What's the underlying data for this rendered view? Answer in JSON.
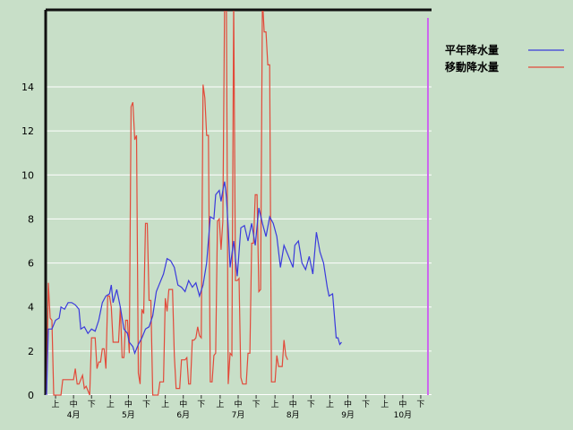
{
  "chart_data": {
    "type": "line",
    "ylim": [
      0,
      17.5
    ],
    "y_ticks": [
      "0",
      "2",
      "4",
      "6",
      "8",
      "10",
      "12",
      "14"
    ],
    "months": [
      "4月",
      "5月",
      "6月",
      "7月",
      "8月",
      "9月",
      "10月"
    ],
    "dekads": [
      "上",
      "中",
      "下"
    ],
    "grid": true,
    "legend_position": "top-right",
    "n_days": 214,
    "marker_day": 212,
    "series": [
      {
        "name": "平年降水量",
        "color": "#3a3adc",
        "points": [
          [
            0,
            0
          ],
          [
            1,
            3.0
          ],
          [
            3,
            3.0
          ],
          [
            5,
            3.4
          ],
          [
            7,
            3.5
          ],
          [
            8,
            4.0
          ],
          [
            10,
            3.9
          ],
          [
            12,
            4.2
          ],
          [
            14,
            4.2
          ],
          [
            16,
            4.1
          ],
          [
            18,
            3.9
          ],
          [
            19,
            3.0
          ],
          [
            21,
            3.1
          ],
          [
            23,
            2.8
          ],
          [
            25,
            3.0
          ],
          [
            27,
            2.9
          ],
          [
            29,
            3.4
          ],
          [
            31,
            4.2
          ],
          [
            33,
            4.5
          ],
          [
            35,
            4.6
          ],
          [
            36,
            5.0
          ],
          [
            37,
            4.2
          ],
          [
            39,
            4.8
          ],
          [
            41,
            4.0
          ],
          [
            43,
            3.0
          ],
          [
            45,
            2.8
          ],
          [
            46,
            2.4
          ],
          [
            48,
            2.2
          ],
          [
            49,
            1.9
          ],
          [
            51,
            2.3
          ],
          [
            53,
            2.6
          ],
          [
            55,
            3.0
          ],
          [
            57,
            3.1
          ],
          [
            59,
            3.6
          ],
          [
            61,
            4.7
          ],
          [
            63,
            5.1
          ],
          [
            65,
            5.5
          ],
          [
            67,
            6.2
          ],
          [
            69,
            6.1
          ],
          [
            71,
            5.8
          ],
          [
            73,
            5.0
          ],
          [
            75,
            4.9
          ],
          [
            77,
            4.7
          ],
          [
            79,
            5.2
          ],
          [
            81,
            4.9
          ],
          [
            83,
            5.1
          ],
          [
            85,
            4.5
          ],
          [
            87,
            5.0
          ],
          [
            89,
            6.0
          ],
          [
            91,
            8.1
          ],
          [
            93,
            8.0
          ],
          [
            94,
            9.1
          ],
          [
            96,
            9.3
          ],
          [
            97,
            8.8
          ],
          [
            98,
            9.3
          ],
          [
            99,
            9.7
          ],
          [
            100,
            9.0
          ],
          [
            101,
            7.6
          ],
          [
            102,
            5.8
          ],
          [
            104,
            7.0
          ],
          [
            106,
            5.4
          ],
          [
            108,
            7.6
          ],
          [
            110,
            7.7
          ],
          [
            112,
            7.0
          ],
          [
            114,
            7.8
          ],
          [
            116,
            6.8
          ],
          [
            118,
            8.5
          ],
          [
            120,
            7.8
          ],
          [
            122,
            7.2
          ],
          [
            124,
            8.1
          ],
          [
            126,
            7.8
          ],
          [
            128,
            7.2
          ],
          [
            130,
            5.8
          ],
          [
            132,
            6.8
          ],
          [
            134,
            6.4
          ],
          [
            136,
            6.0
          ],
          [
            137,
            5.8
          ],
          [
            138,
            6.8
          ],
          [
            140,
            7.0
          ],
          [
            142,
            6.0
          ],
          [
            144,
            5.7
          ],
          [
            146,
            6.3
          ],
          [
            148,
            5.5
          ],
          [
            150,
            7.4
          ],
          [
            152,
            6.5
          ],
          [
            154,
            6.0
          ],
          [
            156,
            4.9
          ],
          [
            157,
            4.5
          ],
          [
            159,
            4.6
          ],
          [
            161,
            2.6
          ],
          [
            162,
            2.6
          ],
          [
            163,
            2.3
          ],
          [
            164,
            2.4
          ]
        ]
      },
      {
        "name": "移動降水量",
        "color": "#e24a3a",
        "points": [
          [
            0,
            0.0
          ],
          [
            1,
            5.1
          ],
          [
            2,
            3.5
          ],
          [
            3,
            3.4
          ],
          [
            4,
            0.0
          ],
          [
            5,
            0.0
          ],
          [
            6,
            0.0
          ],
          [
            7,
            0.0
          ],
          [
            8,
            0.0
          ],
          [
            9,
            0.7
          ],
          [
            10,
            0.7
          ],
          [
            11,
            0.7
          ],
          [
            13,
            0.7
          ],
          [
            15,
            0.7
          ],
          [
            16,
            1.2
          ],
          [
            17,
            0.5
          ],
          [
            18,
            0.5
          ],
          [
            20,
            0.9
          ],
          [
            21,
            0.3
          ],
          [
            22,
            0.4
          ],
          [
            24,
            0.0
          ],
          [
            25,
            2.6
          ],
          [
            26,
            2.6
          ],
          [
            27,
            2.6
          ],
          [
            28,
            1.2
          ],
          [
            29,
            1.5
          ],
          [
            30,
            1.5
          ],
          [
            31,
            2.1
          ],
          [
            32,
            2.1
          ],
          [
            33,
            1.2
          ],
          [
            34,
            4.5
          ],
          [
            35,
            4.5
          ],
          [
            36,
            4.0
          ],
          [
            37,
            2.4
          ],
          [
            38,
            2.4
          ],
          [
            39,
            2.4
          ],
          [
            40,
            2.4
          ],
          [
            41,
            4.0
          ],
          [
            42,
            1.7
          ],
          [
            43,
            1.7
          ],
          [
            44,
            3.4
          ],
          [
            45,
            3.4
          ],
          [
            46,
            1.9
          ],
          [
            47,
            13.1
          ],
          [
            48,
            13.3
          ],
          [
            49,
            11.6
          ],
          [
            50,
            11.8
          ],
          [
            51,
            1.0
          ],
          [
            52,
            0.5
          ],
          [
            53,
            3.9
          ],
          [
            54,
            3.7
          ],
          [
            55,
            7.8
          ],
          [
            56,
            7.8
          ],
          [
            57,
            4.3
          ],
          [
            58,
            4.3
          ],
          [
            59,
            0.0
          ],
          [
            60,
            0.0
          ],
          [
            61,
            0.0
          ],
          [
            62,
            0.0
          ],
          [
            63,
            0.6
          ],
          [
            64,
            0.6
          ],
          [
            65,
            0.6
          ],
          [
            66,
            4.4
          ],
          [
            67,
            3.8
          ],
          [
            68,
            4.8
          ],
          [
            69,
            4.8
          ],
          [
            70,
            4.8
          ],
          [
            71,
            1.8
          ],
          [
            72,
            0.3
          ],
          [
            73,
            0.3
          ],
          [
            74,
            0.3
          ],
          [
            75,
            1.6
          ],
          [
            76,
            1.6
          ],
          [
            77,
            1.6
          ],
          [
            78,
            1.7
          ],
          [
            79,
            0.5
          ],
          [
            80,
            0.5
          ],
          [
            81,
            2.5
          ],
          [
            82,
            2.5
          ],
          [
            83,
            2.6
          ],
          [
            84,
            3.1
          ],
          [
            85,
            2.7
          ],
          [
            86,
            2.6
          ],
          [
            87,
            14.1
          ],
          [
            88,
            13.5
          ],
          [
            89,
            11.8
          ],
          [
            90,
            11.8
          ],
          [
            91,
            0.6
          ],
          [
            92,
            0.6
          ],
          [
            93,
            1.8
          ],
          [
            94,
            1.9
          ],
          [
            95,
            7.9
          ],
          [
            96,
            8.0
          ],
          [
            97,
            6.6
          ],
          [
            98,
            7.9
          ],
          [
            99,
            18.0
          ],
          [
            100,
            17.5
          ],
          [
            101,
            0.5
          ],
          [
            102,
            1.9
          ],
          [
            103,
            1.8
          ],
          [
            104,
            18.0
          ],
          [
            105,
            5.2
          ],
          [
            106,
            5.2
          ],
          [
            107,
            5.3
          ],
          [
            108,
            0.8
          ],
          [
            109,
            0.5
          ],
          [
            110,
            0.5
          ],
          [
            111,
            0.5
          ],
          [
            112,
            1.9
          ],
          [
            113,
            1.9
          ],
          [
            114,
            6.9
          ],
          [
            115,
            6.9
          ],
          [
            116,
            9.1
          ],
          [
            117,
            9.1
          ],
          [
            118,
            4.7
          ],
          [
            119,
            4.8
          ],
          [
            120,
            18.0
          ],
          [
            121,
            16.5
          ],
          [
            122,
            16.5
          ],
          [
            123,
            15.0
          ],
          [
            124,
            15.0
          ],
          [
            125,
            0.6
          ],
          [
            126,
            0.6
          ],
          [
            127,
            0.6
          ],
          [
            128,
            1.8
          ],
          [
            129,
            1.3
          ],
          [
            130,
            1.3
          ],
          [
            131,
            1.3
          ],
          [
            132,
            2.5
          ],
          [
            133,
            1.8
          ],
          [
            134,
            1.6
          ]
        ]
      }
    ]
  }
}
